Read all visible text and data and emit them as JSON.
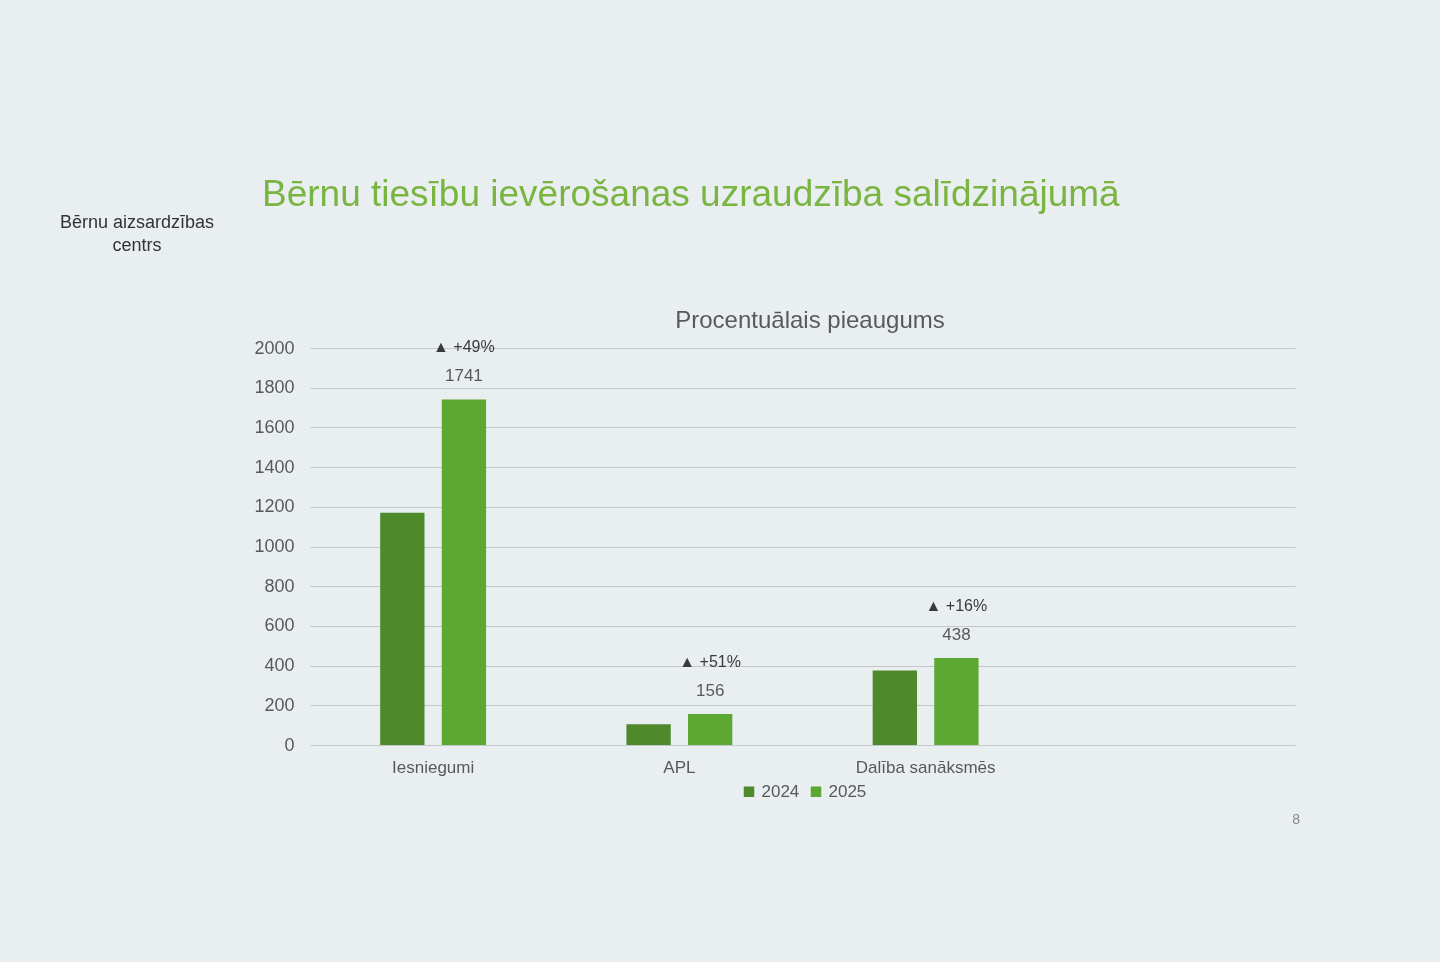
{
  "chart_data": {
    "type": "bar",
    "title": "Bērnu tiesību ievērošanas uzraudzība salīdzinājumā",
    "subtitle": "Procentuālais pieaugums",
    "categories": [
      "Iesniegumi",
      "APL",
      "Dalība sanāksmēs",
      null
    ],
    "series": [
      {
        "name": "2024",
        "color": "#4e8a2c",
        "values": [
          1170,
          105,
          375,
          null
        ]
      },
      {
        "name": "2025",
        "color": "#5da833",
        "values": [
          1741,
          156,
          438,
          null
        ],
        "value_labels": [
          "1741",
          "156",
          "438",
          null
        ]
      }
    ],
    "ylim": [
      0,
      2000
    ],
    "yticks": [
      0,
      200,
      400,
      600,
      800,
      1000,
      1200,
      1400,
      1600,
      1800,
      2000
    ],
    "grid": "y",
    "legend": "bottom",
    "annotations": [
      "Bērnu aizsardzības centrs",
      "▲ +49%",
      "▲ +51%",
      "▲ +16%",
      "8"
    ]
  }
}
